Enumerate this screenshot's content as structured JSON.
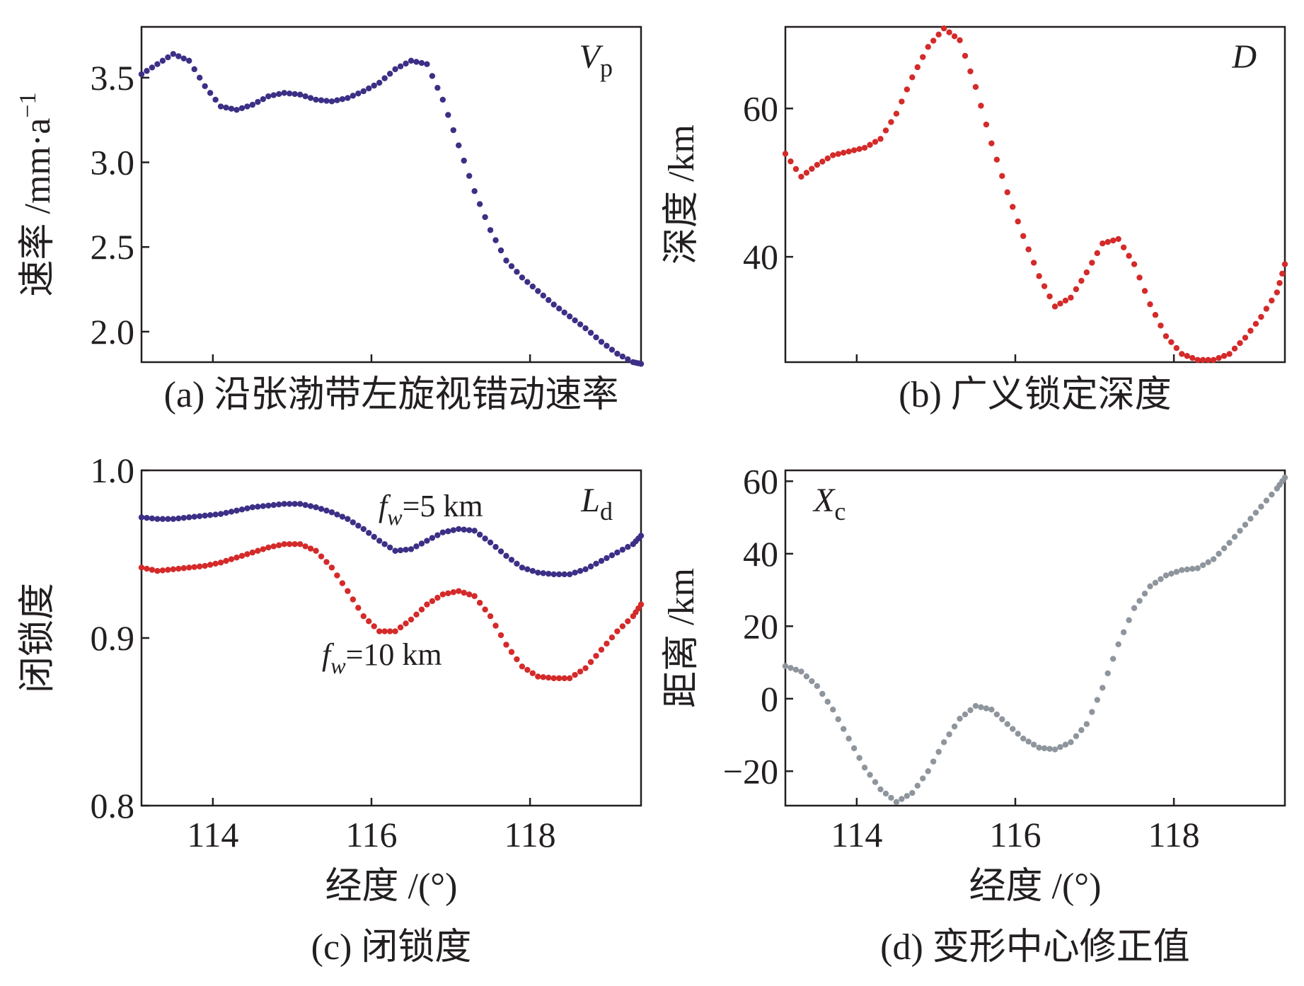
{
  "chart_data": [
    {
      "id": "a",
      "type": "scatter",
      "caption": "(a) 沿张渤带左旋视错动速率",
      "corner_label": {
        "main": "V",
        "sub": "p"
      },
      "ylabel": "速率 /mm·a",
      "ylabel_sup": "−1",
      "xlabel": "",
      "xlim": [
        113.1,
        119.4
      ],
      "ylim": [
        1.82,
        3.8
      ],
      "xticks": [
        114,
        116,
        118
      ],
      "xtick_labels": [
        "",
        "",
        ""
      ],
      "yticks": [
        2.0,
        2.5,
        3.0,
        3.5
      ],
      "ytick_labels": [
        "2.0",
        "2.5",
        "3.0",
        "3.5"
      ],
      "series": [
        {
          "name": "Vp",
          "color": "#3b2f86",
          "x": [
            113.1,
            113.3,
            113.5,
            113.7,
            113.9,
            114.1,
            114.3,
            114.5,
            114.7,
            114.9,
            115.1,
            115.3,
            115.5,
            115.7,
            115.9,
            116.1,
            116.3,
            116.5,
            116.7,
            116.9,
            117.1,
            117.3,
            117.5,
            117.7,
            117.9,
            118.1,
            118.3,
            118.5,
            118.7,
            118.9,
            119.1,
            119.3,
            119.4
          ],
          "y": [
            3.52,
            3.58,
            3.64,
            3.6,
            3.45,
            3.33,
            3.31,
            3.34,
            3.39,
            3.41,
            3.4,
            3.37,
            3.36,
            3.38,
            3.42,
            3.47,
            3.55,
            3.6,
            3.58,
            3.37,
            3.1,
            2.83,
            2.6,
            2.42,
            2.32,
            2.24,
            2.16,
            2.09,
            2.02,
            1.94,
            1.87,
            1.82,
            1.81
          ]
        }
      ]
    },
    {
      "id": "b",
      "type": "scatter",
      "caption": "(b) 广义锁定深度",
      "corner_label": {
        "main": "D",
        "sub": ""
      },
      "ylabel": "深度 /km",
      "ylabel_sup": "",
      "xlabel": "",
      "xlim": [
        113.1,
        119.4
      ],
      "ylim": [
        25.8,
        71.0
      ],
      "xticks": [
        114,
        116,
        118
      ],
      "xtick_labels": [
        "",
        "",
        ""
      ],
      "yticks": [
        40,
        60
      ],
      "ytick_labels": [
        "40",
        "60"
      ],
      "series": [
        {
          "name": "D",
          "color": "#d42a2a",
          "x": [
            113.1,
            113.3,
            113.5,
            113.7,
            113.9,
            114.1,
            114.3,
            114.5,
            114.7,
            114.9,
            115.1,
            115.3,
            115.5,
            115.7,
            115.9,
            116.1,
            116.3,
            116.5,
            116.7,
            116.9,
            117.1,
            117.3,
            117.5,
            117.7,
            117.9,
            118.1,
            118.3,
            118.5,
            118.7,
            118.9,
            119.1,
            119.3,
            119.4
          ],
          "y": [
            53.9,
            50.8,
            52.4,
            53.7,
            54.2,
            54.7,
            55.9,
            59.3,
            64.2,
            68.3,
            70.8,
            69.2,
            62.9,
            55.3,
            48.7,
            42.8,
            37.4,
            33.3,
            34.5,
            37.9,
            41.8,
            42.4,
            39.0,
            33.6,
            29.3,
            26.9,
            26.1,
            26.1,
            26.9,
            29.1,
            31.9,
            35.2,
            39.0
          ]
        }
      ]
    },
    {
      "id": "c",
      "type": "scatter",
      "caption": "(c) 闭锁度",
      "corner_label": {
        "main": "L",
        "sub": "d"
      },
      "ylabel": "闭锁度",
      "ylabel_sup": "",
      "xlabel": "经度 /(°)",
      "xlim": [
        113.1,
        119.4
      ],
      "ylim": [
        0.8,
        1.0
      ],
      "xticks": [
        114,
        116,
        118
      ],
      "xtick_labels": [
        "114",
        "116",
        "118"
      ],
      "yticks": [
        0.8,
        0.9,
        1.0
      ],
      "ytick_labels": [
        "0.8",
        "0.9",
        "1.0"
      ],
      "series_labels": [
        {
          "f": "f",
          "sub": "w",
          "rest": "=5 km"
        },
        {
          "f": "f",
          "sub": "w",
          "rest": "=10 km"
        }
      ],
      "series": [
        {
          "name": "fw=5 km",
          "color": "#3b2f86",
          "x": [
            113.1,
            113.3,
            113.5,
            113.7,
            113.9,
            114.1,
            114.3,
            114.5,
            114.7,
            114.9,
            115.1,
            115.3,
            115.5,
            115.7,
            115.9,
            116.1,
            116.3,
            116.5,
            116.7,
            116.9,
            117.1,
            117.3,
            117.5,
            117.7,
            117.9,
            118.1,
            118.3,
            118.5,
            118.7,
            118.9,
            119.1,
            119.3,
            119.4
          ],
          "y": [
            0.972,
            0.971,
            0.971,
            0.972,
            0.973,
            0.974,
            0.976,
            0.978,
            0.979,
            0.98,
            0.98,
            0.978,
            0.975,
            0.971,
            0.965,
            0.958,
            0.952,
            0.953,
            0.958,
            0.963,
            0.965,
            0.964,
            0.957,
            0.949,
            0.942,
            0.939,
            0.938,
            0.938,
            0.941,
            0.946,
            0.951,
            0.956,
            0.961
          ]
        },
        {
          "name": "fw=10 km",
          "color": "#d42a2a",
          "x": [
            113.1,
            113.3,
            113.5,
            113.7,
            113.9,
            114.1,
            114.3,
            114.5,
            114.7,
            114.9,
            115.1,
            115.3,
            115.5,
            115.7,
            115.9,
            116.1,
            116.3,
            116.5,
            116.7,
            116.9,
            117.1,
            117.3,
            117.5,
            117.7,
            117.9,
            118.1,
            118.3,
            118.5,
            118.7,
            118.9,
            119.1,
            119.3,
            119.4
          ],
          "y": [
            0.942,
            0.94,
            0.941,
            0.942,
            0.943,
            0.945,
            0.948,
            0.951,
            0.954,
            0.956,
            0.956,
            0.952,
            0.942,
            0.928,
            0.913,
            0.904,
            0.904,
            0.911,
            0.92,
            0.926,
            0.928,
            0.925,
            0.913,
            0.896,
            0.883,
            0.877,
            0.876,
            0.876,
            0.882,
            0.893,
            0.904,
            0.913,
            0.92
          ]
        }
      ]
    },
    {
      "id": "d",
      "type": "scatter",
      "caption": "(d) 变形中心修正值",
      "corner_label": {
        "main": "X",
        "sub": "c"
      },
      "ylabel": "距离 /km",
      "ylabel_sup": "",
      "xlabel": "经度 /(°)",
      "xlim": [
        113.1,
        119.4
      ],
      "ylim": [
        -29.5,
        63.0
      ],
      "xticks": [
        114,
        116,
        118
      ],
      "xtick_labels": [
        "114",
        "116",
        "118"
      ],
      "yticks": [
        -20,
        0,
        20,
        40,
        60
      ],
      "ytick_labels": [
        "−20",
        "0",
        "20",
        "40",
        "60"
      ],
      "series": [
        {
          "name": "Xc",
          "color": "#8e959c",
          "x": [
            113.1,
            113.3,
            113.5,
            113.7,
            113.9,
            114.1,
            114.3,
            114.5,
            114.7,
            114.9,
            115.1,
            115.3,
            115.5,
            115.7,
            115.9,
            116.1,
            116.3,
            116.5,
            116.7,
            116.9,
            117.1,
            117.3,
            117.5,
            117.7,
            117.9,
            118.1,
            118.3,
            118.5,
            118.7,
            118.9,
            119.1,
            119.3,
            119.4
          ],
          "y": [
            9.0,
            7.5,
            3.5,
            -3.0,
            -11.0,
            -19.0,
            -25.0,
            -28.5,
            -26.0,
            -20.0,
            -12.0,
            -5.5,
            -2.0,
            -3.0,
            -7.0,
            -11.0,
            -13.5,
            -14.0,
            -12.0,
            -7.0,
            3.0,
            15.0,
            25.0,
            31.0,
            34.0,
            35.5,
            36.0,
            38.5,
            43.0,
            48.0,
            53.0,
            58.0,
            61.0
          ]
        }
      ]
    }
  ]
}
